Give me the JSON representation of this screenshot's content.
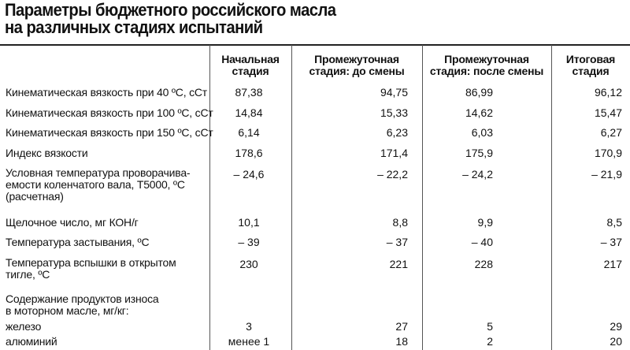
{
  "title": {
    "line1": "Параметры бюджетного российского масла",
    "line2": "на различных стадиях испытаний"
  },
  "columns": [
    {
      "line1": "Начальная",
      "line2": "стадия"
    },
    {
      "line1": "Промежуточная",
      "line2": "стадия: до смены"
    },
    {
      "line1": "Промежуточная",
      "line2": "стадия: после смены"
    },
    {
      "line1": "Итоговая",
      "line2": "стадия"
    }
  ],
  "rows": [
    {
      "label": [
        "Кинематическая вязкость при 40 ºС, сСт"
      ],
      "values": [
        "87,38",
        "94,75",
        "86,99",
        "96,12"
      ]
    },
    {
      "label": [
        "Кинематическая вязкость при 100 ºС, сСт"
      ],
      "values": [
        "14,84",
        "15,33",
        "14,62",
        "15,47"
      ]
    },
    {
      "label": [
        "Кинематическая вязкость при 150 ºС, сСт"
      ],
      "values": [
        "6,14",
        "6,23",
        "6,03",
        "6,27"
      ]
    },
    {
      "label": [
        "Индекс вязкости"
      ],
      "values": [
        "178,6",
        "171,4",
        "175,9",
        "170,9"
      ]
    },
    {
      "label": [
        "Условная температура проворачива-",
        "емости коленчатого вала, Т5000, ºС",
        "(расчетная)"
      ],
      "values": [
        "– 24,6",
        "– 22,2",
        "– 24,2",
        "– 21,9"
      ]
    },
    {
      "label": [
        "Щелочное число, мг КОН/г"
      ],
      "values": [
        "10,1",
        "8,8",
        "9,9",
        "8,5"
      ]
    },
    {
      "label": [
        "Температура застывания, ºС"
      ],
      "values": [
        "– 39",
        "– 37",
        "– 40",
        "– 37"
      ]
    },
    {
      "label": [
        "Температура вспышки в открытом",
        "тигле, ºС"
      ],
      "values": [
        "230",
        "221",
        "228",
        "217"
      ]
    },
    {
      "label": [
        "Содержание продуктов износа",
        "в моторном масле, мг/кг:"
      ],
      "values": [
        "",
        "",
        "",
        ""
      ]
    },
    {
      "label": [
        "железо"
      ],
      "values": [
        "3",
        "27",
        "5",
        "29"
      ]
    },
    {
      "label": [
        "алюминий"
      ],
      "values": [
        "менее 1",
        "18",
        "2",
        "20"
      ]
    }
  ]
}
